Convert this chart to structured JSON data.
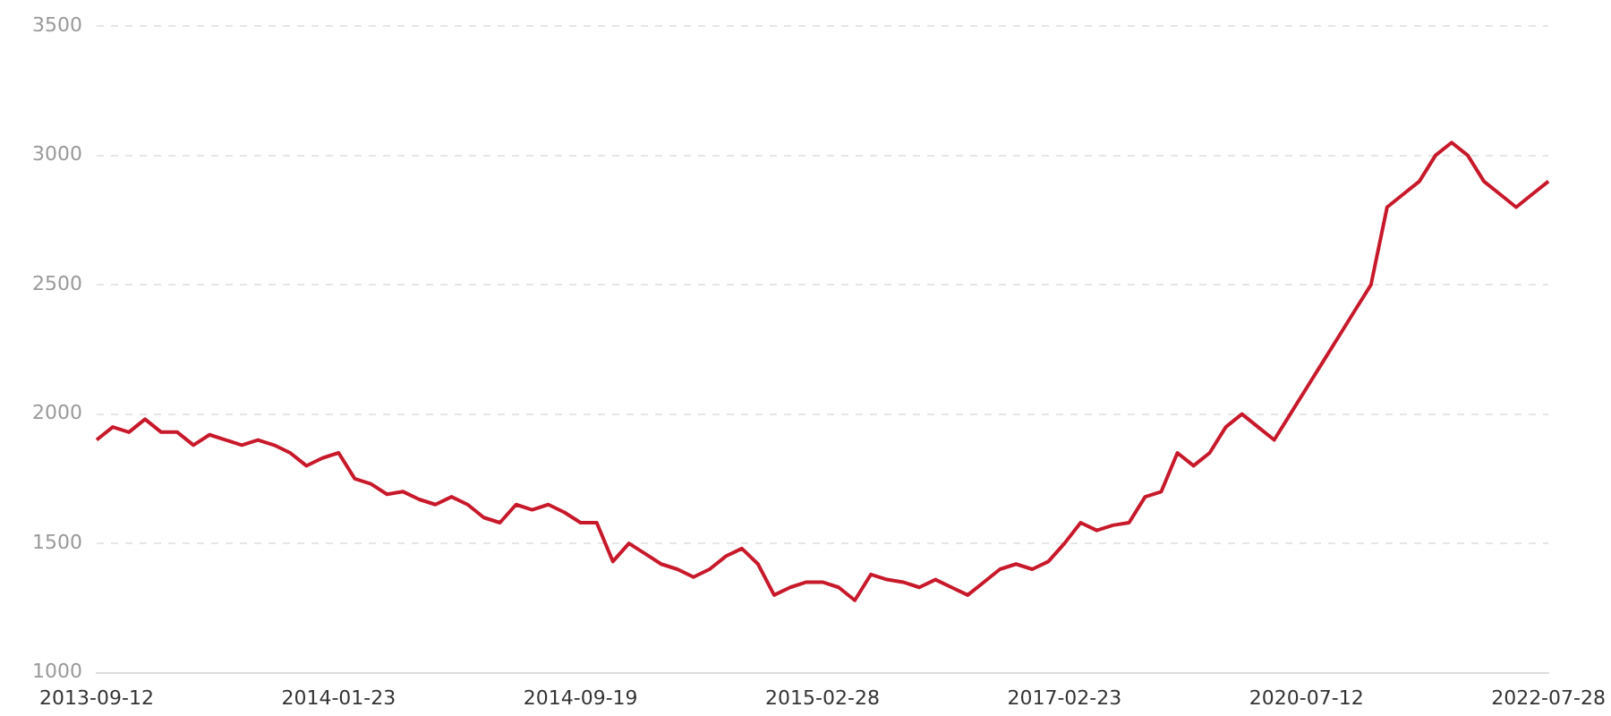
{
  "chart_data": {
    "type": "line",
    "categories": [
      "2013-09-12",
      null,
      null,
      null,
      null,
      null,
      null,
      null,
      null,
      null,
      null,
      null,
      null,
      null,
      null,
      "2014-01-23",
      null,
      null,
      null,
      null,
      null,
      null,
      null,
      null,
      null,
      null,
      null,
      null,
      null,
      null,
      "2014-09-19",
      null,
      null,
      null,
      null,
      null,
      null,
      null,
      null,
      null,
      null,
      null,
      null,
      null,
      null,
      "2015-02-28",
      null,
      null,
      null,
      null,
      null,
      null,
      null,
      null,
      null,
      null,
      null,
      null,
      null,
      null,
      "2017-02-23",
      null,
      null,
      null,
      null,
      null,
      null,
      null,
      null,
      null,
      null,
      null,
      null,
      null,
      null,
      "2020-07-12",
      null,
      null,
      null,
      null,
      null,
      null,
      null,
      null,
      null,
      null,
      null,
      null,
      null,
      null,
      "2022-07-28"
    ],
    "series": [
      {
        "color": "#c8192b",
        "values": [
          1900,
          1950,
          1930,
          1980,
          1930,
          1930,
          1880,
          1920,
          1900,
          1880,
          1900,
          1880,
          1850,
          1800,
          1830,
          1850,
          1750,
          1730,
          1690,
          1700,
          1670,
          1650,
          1680,
          1650,
          1600,
          1580,
          1650,
          1630,
          1650,
          1620,
          1580,
          1580,
          1430,
          1500,
          1460,
          1420,
          1400,
          1370,
          1400,
          1450,
          1480,
          1420,
          1300,
          1330,
          1350,
          1350,
          1330,
          1280,
          1380,
          1360,
          1350,
          1330,
          1360,
          1330,
          1300,
          1350,
          1400,
          1420,
          1400,
          1430,
          1500,
          1580,
          1550,
          1570,
          1580,
          1680,
          1700,
          1850,
          1800,
          1850,
          1950,
          2000,
          1950,
          1900,
          2000,
          2100,
          2200,
          2300,
          2400,
          2500,
          2800,
          2850,
          2900,
          3000,
          3050,
          3000,
          2900,
          2850,
          2800,
          2850,
          2900
        ]
      }
    ],
    "ylim": [
      1000,
      3500
    ],
    "yticks": [
      1000,
      1500,
      2000,
      2500,
      3000,
      3500
    ],
    "grid": "y",
    "legend": false,
    "marker": "none",
    "line_style": "solid"
  }
}
